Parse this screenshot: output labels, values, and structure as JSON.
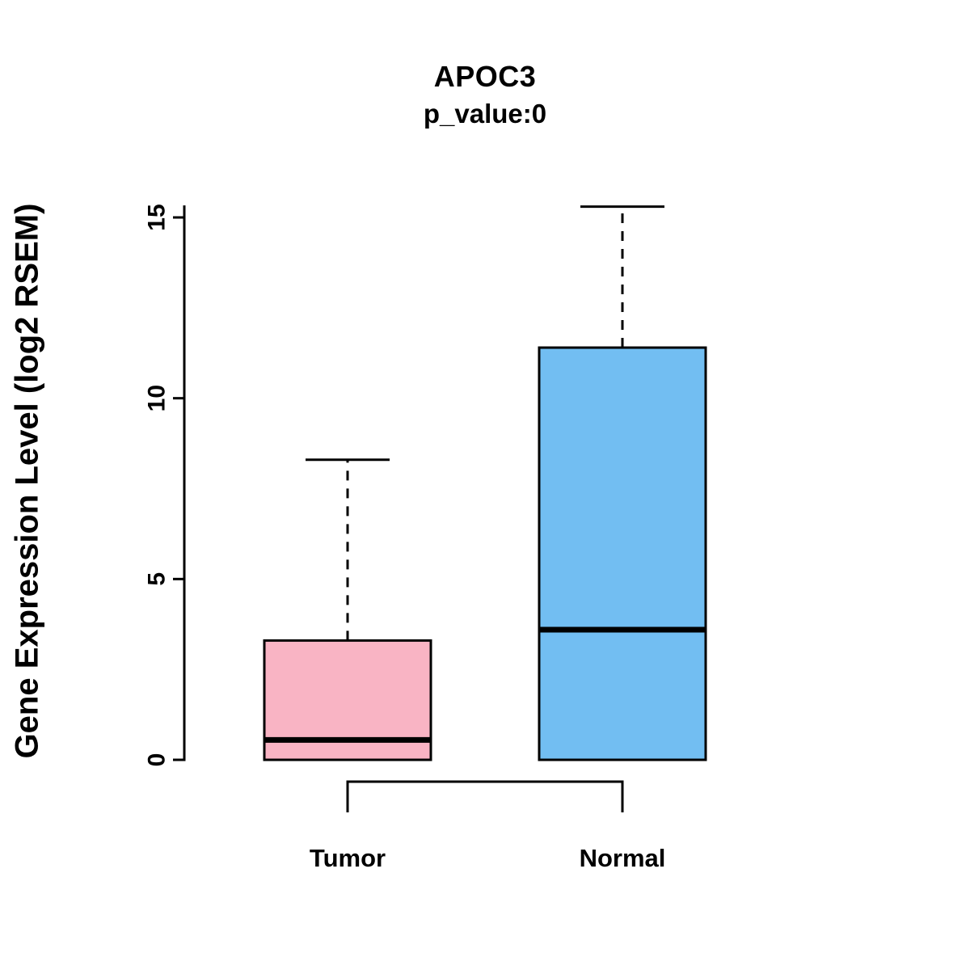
{
  "chart_data": {
    "type": "boxplot",
    "title": "APOC3",
    "subtitle": "p_value:0",
    "ylabel": "Gene Expression Level (log2 RSEM)",
    "xlabel": "",
    "ylim": [
      0,
      15.3
    ],
    "yticks": [
      0,
      5,
      10,
      15
    ],
    "grid": false,
    "legend": "none",
    "categories": [
      "Tumor",
      "Normal"
    ],
    "series": [
      {
        "name": "Tumor",
        "color": "#F9B4C4",
        "lower_whisker": 0,
        "q1": 0,
        "median": 0.55,
        "q3": 3.3,
        "upper_whisker": 8.3
      },
      {
        "name": "Normal",
        "color": "#72BEF2",
        "lower_whisker": 0,
        "q1": 0,
        "median": 3.6,
        "q3": 11.4,
        "upper_whisker": 15.3
      }
    ],
    "comparison_bracket": {
      "between": [
        "Tumor",
        "Normal"
      ]
    },
    "colors": {
      "axis": "#000000",
      "box_border": "#000000",
      "median": "#000000",
      "background": "#ffffff"
    }
  }
}
